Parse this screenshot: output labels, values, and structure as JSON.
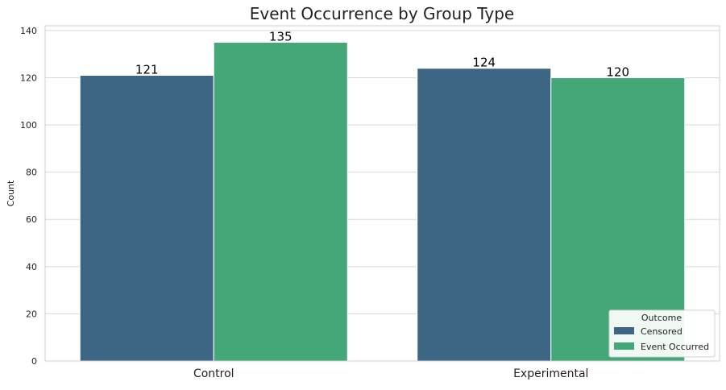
{
  "chart_data": {
    "type": "bar",
    "title": "Event Occurrence by Group Type",
    "xlabel": "",
    "ylabel": "Count",
    "categories": [
      "Control",
      "Experimental"
    ],
    "series": [
      {
        "name": "Censored",
        "values": [
          121,
          124
        ],
        "color": "#3d6584"
      },
      {
        "name": "Event Occurred",
        "values": [
          135,
          120
        ],
        "color": "#44a777"
      }
    ],
    "ylim": [
      0,
      142
    ],
    "yticks": [
      0,
      20,
      40,
      60,
      80,
      100,
      120,
      140
    ],
    "grid": true,
    "legend": {
      "title": "Outcome",
      "placement": "bottom-right"
    }
  }
}
